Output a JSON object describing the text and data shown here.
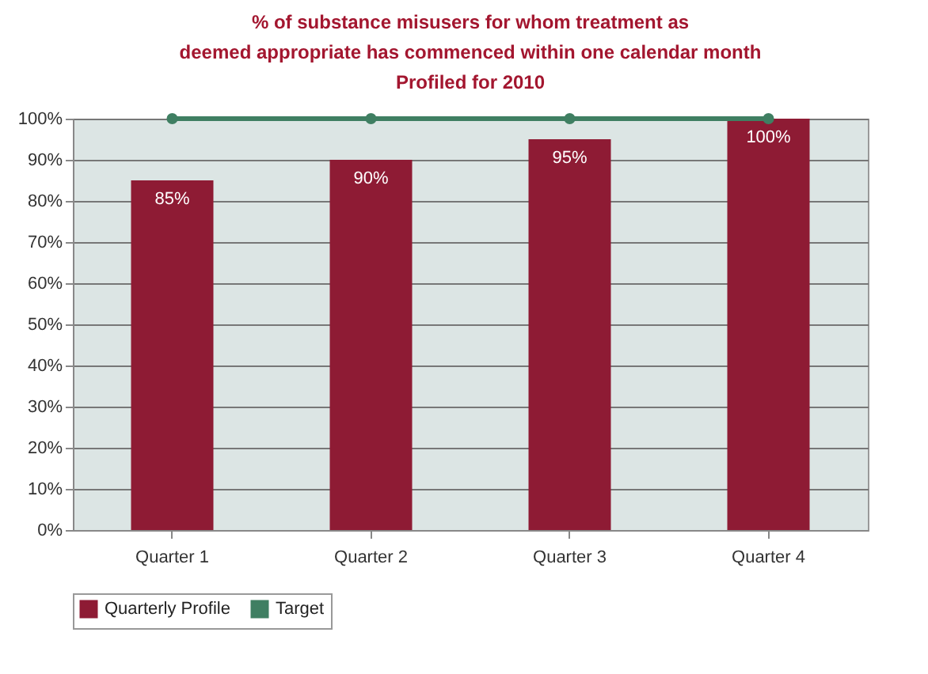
{
  "chart_data": {
    "type": "bar",
    "title": "% of substance misusers for whom treatment as deemed appropriate has commenced within one calendar month",
    "subtitle": "Profiled for 2010",
    "categories": [
      "Quarter 1",
      "Quarter 2",
      "Quarter 3",
      "Quarter 4"
    ],
    "series": [
      {
        "name": "Quarterly Profile",
        "color": "#8e1b34",
        "values": [
          85,
          90,
          95,
          100
        ],
        "value_labels": [
          "85%",
          "90%",
          "95%",
          "100%"
        ]
      },
      {
        "name": "Target",
        "type": "line",
        "color": "#3f7f62",
        "values": [
          100,
          100,
          100,
          100
        ],
        "marker": "circle"
      }
    ],
    "ylim": [
      0,
      100
    ],
    "yticks": [
      {
        "value": 0,
        "label": "0%"
      },
      {
        "value": 10,
        "label": "10%"
      },
      {
        "value": 20,
        "label": "20%"
      },
      {
        "value": 30,
        "label": "30%"
      },
      {
        "value": 40,
        "label": "40%"
      },
      {
        "value": 50,
        "label": "50%"
      },
      {
        "value": 60,
        "label": "60%"
      },
      {
        "value": 70,
        "label": "70%"
      },
      {
        "value": 80,
        "label": "80%"
      },
      {
        "value": 90,
        "label": "90%"
      },
      {
        "value": 100,
        "label": "100%"
      }
    ],
    "grid": "y",
    "legend": "bottom"
  }
}
